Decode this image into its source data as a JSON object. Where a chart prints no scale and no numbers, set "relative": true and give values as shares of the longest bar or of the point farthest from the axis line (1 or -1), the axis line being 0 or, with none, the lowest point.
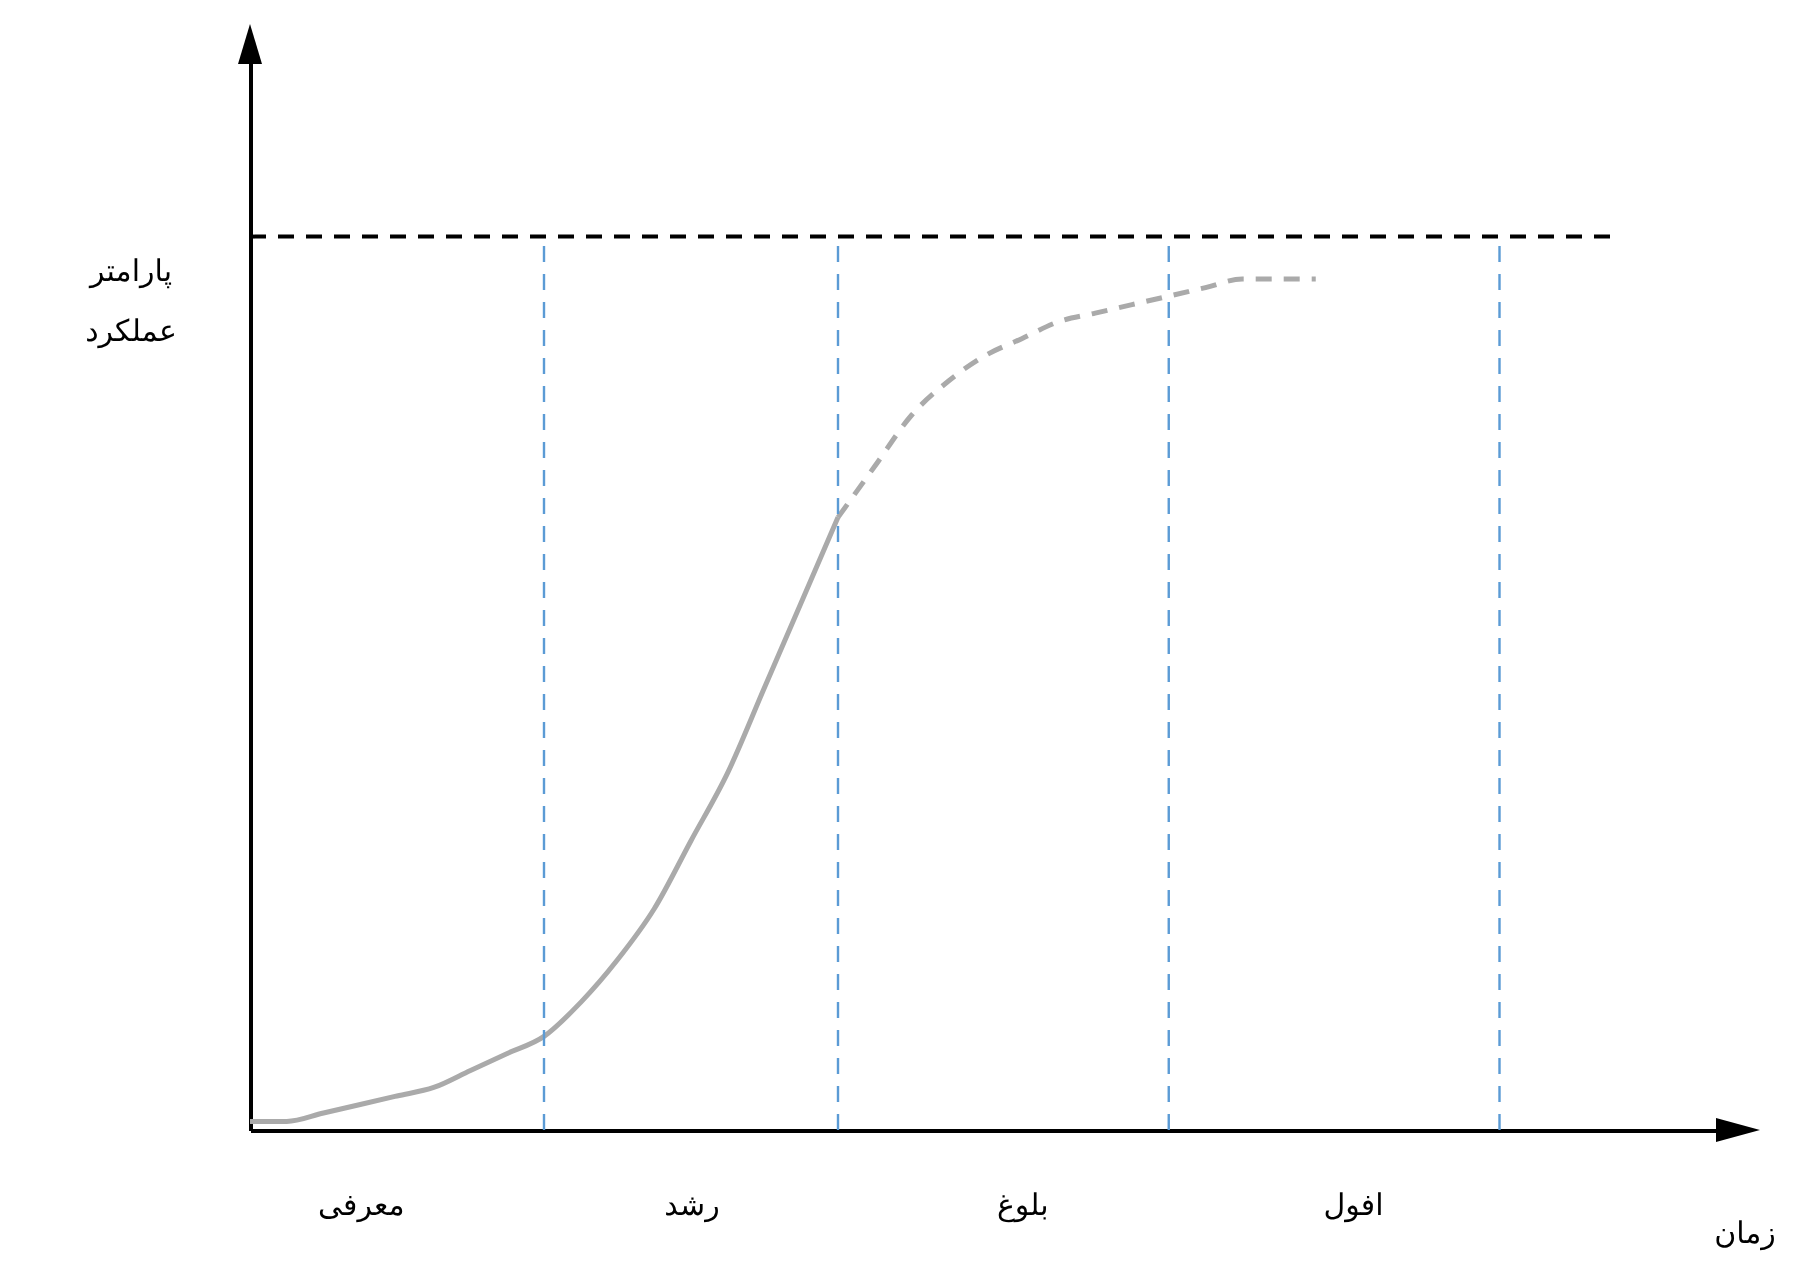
{
  "chart_data": {
    "type": "line",
    "relative": true,
    "xlabel": "زمان",
    "ylabel": "پارامتر عملکرد",
    "categories": [
      null,
      null,
      null,
      "معرفی",
      null,
      null,
      null,
      null,
      null,
      null,
      null,
      null,
      "رشد",
      null,
      null,
      null,
      null,
      null,
      null,
      null,
      null,
      "بلوغ",
      null,
      null,
      null,
      null,
      null,
      null,
      null,
      null,
      "افول",
      null,
      null,
      null,
      null,
      null,
      null,
      null,
      null,
      null,
      null
    ],
    "series": [
      {
        "color": "#aaaaaa",
        "line_style": "solid",
        "values": [
          0.01,
          0.01,
          0.02,
          0.03,
          0.04,
          0.05,
          0.07,
          0.09,
          0.11,
          0.15,
          0.2,
          0.26,
          0.34,
          0.42,
          0.52,
          0.62,
          0.72,
          null,
          null,
          null,
          null,
          null,
          null,
          null,
          null,
          null,
          null,
          null,
          null,
          null,
          null,
          null,
          null,
          null,
          null,
          null,
          null,
          null,
          null,
          null,
          null
        ]
      },
      {
        "color": "#aaaaaa",
        "line_style": "dashed",
        "values": [
          null,
          null,
          null,
          null,
          null,
          null,
          null,
          null,
          null,
          null,
          null,
          null,
          null,
          null,
          null,
          null,
          0.72,
          0.78,
          0.84,
          0.88,
          0.91,
          0.93,
          0.95,
          0.96,
          0.97,
          0.98,
          0.99,
          1.0,
          1.0,
          1.0,
          null,
          null,
          null,
          null,
          null,
          null,
          null,
          null,
          null,
          null,
          null
        ]
      }
    ],
    "ref_lines": [
      {
        "axis": "y",
        "value": 1.05,
        "color": "#000000",
        "line_style": "dashed"
      }
    ],
    "grid": "x",
    "marker": "none"
  }
}
